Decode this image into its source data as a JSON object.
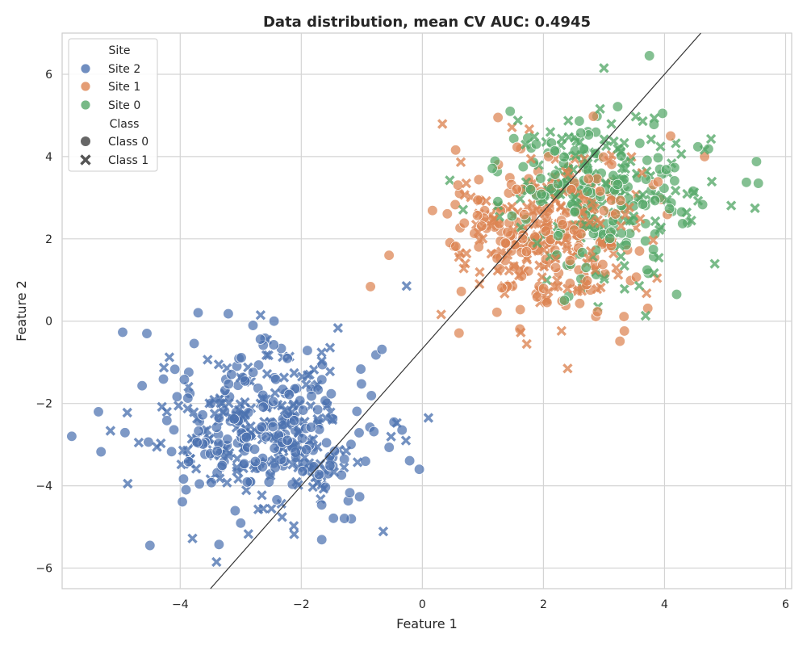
{
  "chart_data": {
    "type": "scatter",
    "title": "Data distribution, mean CV AUC: 0.4945",
    "xlabel": "Feature 1",
    "ylabel": "Feature 2",
    "xlim": [
      -5.95,
      6.1
    ],
    "ylim": [
      -6.5,
      7.0
    ],
    "xticks": [
      -4,
      -2,
      0,
      2,
      4,
      6
    ],
    "yticks": [
      -6,
      -4,
      -2,
      0,
      2,
      4,
      6
    ],
    "grid": true,
    "legend_placement": "top-left",
    "legend": {
      "hue_title": "Site",
      "style_title": "Class",
      "hue_entries": [
        {
          "label": "Site 2",
          "color": "#4c72b0"
        },
        {
          "label": "Site 1",
          "color": "#dd8452"
        },
        {
          "label": "Site 0",
          "color": "#55a868"
        }
      ],
      "style_entries": [
        {
          "label": "Class 0",
          "marker": "circle"
        },
        {
          "label": "Class 1",
          "marker": "x"
        }
      ]
    },
    "decision_line": {
      "x": [
        -3.5,
        4.6
      ],
      "y": [
        -6.5,
        7.0
      ],
      "color": "#333333"
    },
    "clusters": [
      {
        "site": "Site 2",
        "color": "#4c72b0",
        "center": [
          -2.5,
          -2.7
        ],
        "spread": [
          0.95,
          1.05
        ],
        "n_class0": 200,
        "n_class1": 200
      },
      {
        "site": "Site 1",
        "color": "#dd8452",
        "center": [
          2.0,
          2.1
        ],
        "spread": [
          0.85,
          1.0
        ],
        "n_class0": 180,
        "n_class1": 180
      },
      {
        "site": "Site 0",
        "color": "#55a868",
        "center": [
          3.0,
          3.1
        ],
        "spread": [
          0.85,
          0.95
        ],
        "n_class0": 150,
        "n_class1": 150
      }
    ],
    "notable_points": [
      {
        "site": "Site 2",
        "class": "Class 0",
        "x": -5.35,
        "y": -2.2
      },
      {
        "site": "Site 2",
        "class": "Class 0",
        "x": -4.5,
        "y": -5.45
      },
      {
        "site": "Site 2",
        "class": "Class 0",
        "x": -4.55,
        "y": -0.3
      },
      {
        "site": "Site 2",
        "class": "Class 0",
        "x": -2.45,
        "y": 0.0
      },
      {
        "site": "Site 2",
        "class": "Class 1",
        "x": -3.4,
        "y": -5.85
      },
      {
        "site": "Site 2",
        "class": "Class 0",
        "x": -0.05,
        "y": -3.6
      },
      {
        "site": "Site 2",
        "class": "Class 1",
        "x": 0.1,
        "y": -2.35
      },
      {
        "site": "Site 1",
        "class": "Class 1",
        "x": 2.4,
        "y": -1.15
      },
      {
        "site": "Site 1",
        "class": "Class 0",
        "x": -0.55,
        "y": 1.6
      },
      {
        "site": "Site 1",
        "class": "Class 0",
        "x": 1.25,
        "y": 4.95
      },
      {
        "site": "Site 1",
        "class": "Class 0",
        "x": 4.1,
        "y": 4.5
      },
      {
        "site": "Site 0",
        "class": "Class 0",
        "x": 3.75,
        "y": 6.45
      },
      {
        "site": "Site 0",
        "class": "Class 1",
        "x": 3.0,
        "y": 6.15
      },
      {
        "site": "Site 0",
        "class": "Class 0",
        "x": 5.55,
        "y": 3.35
      },
      {
        "site": "Site 0",
        "class": "Class 0",
        "x": 4.2,
        "y": 0.65
      },
      {
        "site": "Site 0",
        "class": "Class 0",
        "x": 1.45,
        "y": 5.1
      }
    ]
  }
}
